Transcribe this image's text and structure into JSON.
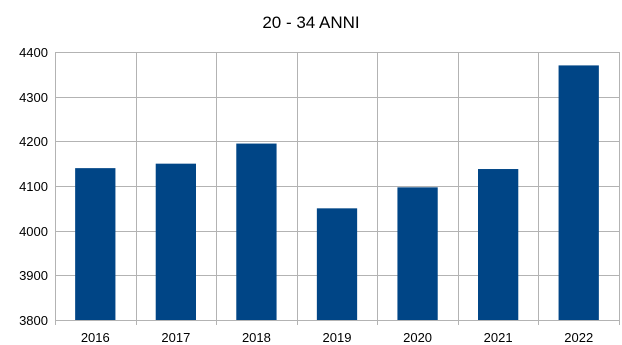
{
  "chart_data": {
    "type": "bar",
    "title": "20 - 34 ANNI",
    "xlabel": "",
    "ylabel": "",
    "categories": [
      "2016",
      "2017",
      "2018",
      "2019",
      "2020",
      "2021",
      "2022"
    ],
    "values": [
      4140,
      4150,
      4195,
      4050,
      4097,
      4138,
      4370
    ],
    "ylim": [
      3800,
      4400
    ],
    "yticks": [
      "3800",
      "3900",
      "4000",
      "4100",
      "4200",
      "4300",
      "4400"
    ],
    "grid": true,
    "legend": "none",
    "colors": {
      "bar": "#004586",
      "grid": "#b3b3b3",
      "background": "#ffffff"
    }
  }
}
